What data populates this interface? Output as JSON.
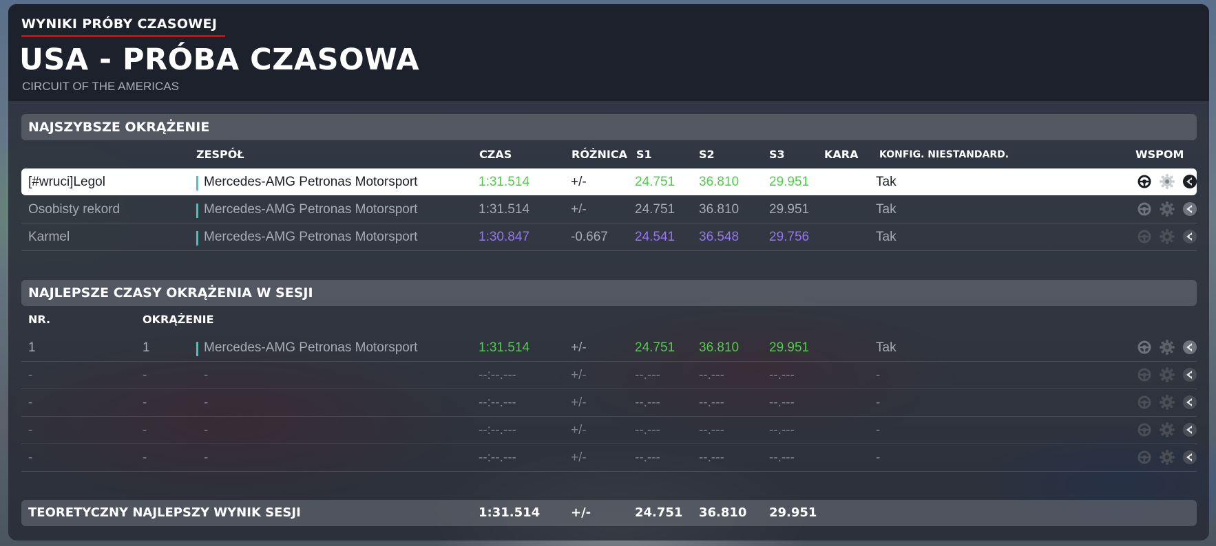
{
  "header": {
    "kicker": "WYNIKI PRÓBY CZASOWEJ",
    "title": "USA - PRÓBA CZASOWA",
    "circuit": "CIRCUIT OF THE AMERICAS",
    "accent_color": "#e10600"
  },
  "fastest": {
    "section_title": "NAJSZYBSZE OKRĄŻENIE",
    "columns": {
      "team": "ZESPÓŁ",
      "time": "CZAS",
      "diff": "RÓŻNICA",
      "s1": "S1",
      "s2": "S2",
      "s3": "S3",
      "penalty": "KARA",
      "config": "KONFIG. NIESTANDARD.",
      "assists": "WSPOM"
    },
    "rows": [
      {
        "name": "[#wruci]Legol",
        "team": "Mercedes-AMG Petronas Motorsport",
        "time": "1:31.514",
        "diff": "+/-",
        "s1": "24.751",
        "s2": "36.810",
        "s3": "29.951",
        "config": "Tak",
        "highlight": true
      },
      {
        "name": "Osobisty rekord",
        "team": "Mercedes-AMG Petronas Motorsport",
        "time": "1:31.514",
        "diff": "+/-",
        "s1": "24.751",
        "s2": "36.810",
        "s3": "29.951",
        "config": "Tak"
      },
      {
        "name": "Karmel",
        "team": "Mercedes-AMG Petronas Motorsport",
        "time": "1:30.847",
        "diff": "-0.667",
        "s1": "24.541",
        "s2": "36.548",
        "s3": "29.756",
        "config": "Tak"
      }
    ]
  },
  "session": {
    "section_title": "NAJLEPSZE CZASY OKRĄŻENIA W SESJI",
    "columns": {
      "nr": "NR.",
      "lap": "OKRĄŻENIE"
    },
    "rows": [
      {
        "nr": "1",
        "lap": "1",
        "team": "Mercedes-AMG Petronas Motorsport",
        "time": "1:31.514",
        "diff": "+/-",
        "s1": "24.751",
        "s2": "36.810",
        "s3": "29.951",
        "config": "Tak"
      },
      {
        "nr": "-",
        "lap": "-",
        "team": "-",
        "time": "--:--.---",
        "diff": "+/-",
        "s1": "--.---",
        "s2": "--.---",
        "s3": "--.---",
        "config": "-"
      },
      {
        "nr": "-",
        "lap": "-",
        "team": "-",
        "time": "--:--.---",
        "diff": "+/-",
        "s1": "--.---",
        "s2": "--.---",
        "s3": "--.---",
        "config": "-"
      },
      {
        "nr": "-",
        "lap": "-",
        "team": "-",
        "time": "--:--.---",
        "diff": "+/-",
        "s1": "--.---",
        "s2": "--.---",
        "s3": "--.---",
        "config": "-"
      },
      {
        "nr": "-",
        "lap": "-",
        "team": "-",
        "time": "--:--.---",
        "diff": "+/-",
        "s1": "--.---",
        "s2": "--.---",
        "s3": "--.---",
        "config": "-"
      }
    ]
  },
  "theoretical": {
    "label": "TEORETYCZNY NAJLEPSZY WYNIK SESJI",
    "time": "1:31.514",
    "diff": "+/-",
    "s1": "24.751",
    "s2": "36.810",
    "s3": "29.951"
  },
  "colors": {
    "team": "#2ad3be",
    "personal_best": "#4fce4a",
    "overall_best": "#9674f0"
  },
  "icons": [
    "steering-assist-icon",
    "gear-assist-icon",
    "braking-assist-icon"
  ]
}
